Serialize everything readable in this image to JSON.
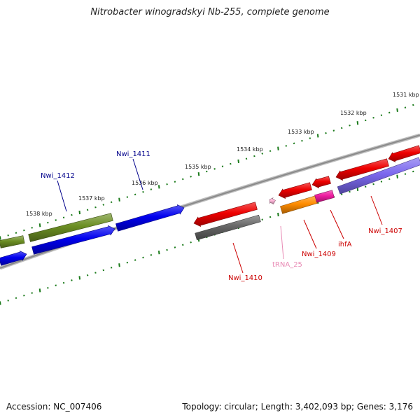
{
  "title": "Nitrobacter winogradskyi Nb-255, complete genome",
  "footer": {
    "accession": "Accession: NC_007406",
    "summary": "Topology: circular; Length: 3,402,093 bp; Genes: 3,176"
  },
  "colors": {
    "background": "#ffffff",
    "backbone": "#8a8a8a",
    "tick": "#1a7a1a",
    "scale_text": "#222222",
    "gene_label_blue": "#00008b",
    "gene_label_red": "#cc0000",
    "trna_label": "#e88ab4",
    "cds_olive": "#6b8e23",
    "cds_blue": "#0000ee",
    "cds_red": "#ee0000",
    "cds_gray": "#666666",
    "cds_orange": "#ff8c00",
    "cds_magenta": "#ee1ca0",
    "cds_slate": "#7b68ee",
    "trna_pink": "#ffb6d9"
  },
  "scale": {
    "unit": "kbp",
    "labels": [
      "1531 kbp",
      "1532 kbp",
      "1533 kbp",
      "1534 kbp",
      "1535 kbp",
      "1536 kbp",
      "1537 kbp",
      "1538 kbp"
    ]
  },
  "genes": {
    "labeled": [
      {
        "name": "Nwi_1412",
        "color": "gene_label_blue"
      },
      {
        "name": "Nwi_1411",
        "color": "gene_label_blue"
      },
      {
        "name": "Nwi_1410",
        "color": "gene_label_red"
      },
      {
        "name": "tRNA_25",
        "color": "trna_label"
      },
      {
        "name": "Nwi_1409",
        "color": "gene_label_red"
      },
      {
        "name": "ihfA",
        "color": "gene_label_red"
      },
      {
        "name": "Nwi_1407",
        "color": "gene_label_red"
      }
    ]
  }
}
